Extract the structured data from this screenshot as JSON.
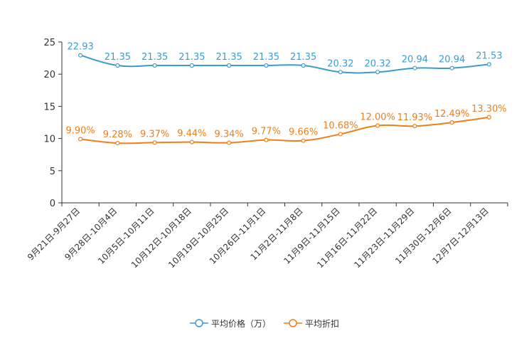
{
  "chart_data": {
    "type": "line",
    "title": "",
    "xlabel": "",
    "ylabel": "",
    "ylim": [
      0,
      25
    ],
    "yticks": [
      0,
      5,
      10,
      15,
      20,
      25
    ],
    "grid": false,
    "legend_position": "bottom-center",
    "categories": [
      "9月21日-9月27日",
      "9月28日-10月4日",
      "10月5日-10月11日",
      "10月12日-10月18日",
      "10月19日-10月25日",
      "10月26日-11月1日",
      "11月2日-11月8日",
      "11月9日-11月15日",
      "11月16日-11月22日",
      "11月23日-11月29日",
      "11月30日-12月6日",
      "12月7日-12月13日"
    ],
    "series": [
      {
        "name": "平均价格（万）",
        "color": "#3c9cd0",
        "values": [
          22.93,
          21.35,
          21.35,
          21.35,
          21.35,
          21.35,
          21.35,
          20.32,
          20.32,
          20.94,
          20.94,
          21.53
        ],
        "labels": [
          "22.93",
          "21.35",
          "21.35",
          "21.35",
          "21.35",
          "21.35",
          "21.35",
          "20.32",
          "20.32",
          "20.94",
          "20.94",
          "21.53"
        ]
      },
      {
        "name": "平均折扣",
        "color": "#f07e16",
        "values": [
          9.9,
          9.28,
          9.37,
          9.44,
          9.34,
          9.77,
          9.66,
          10.68,
          12.0,
          11.93,
          12.49,
          13.3
        ],
        "labels": [
          "9.90%",
          "9.28%",
          "9.37%",
          "9.44%",
          "9.34%",
          "9.77%",
          "9.66%",
          "10.68%",
          "12.00%",
          "11.93%",
          "12.49%",
          "13.30%"
        ]
      }
    ]
  }
}
